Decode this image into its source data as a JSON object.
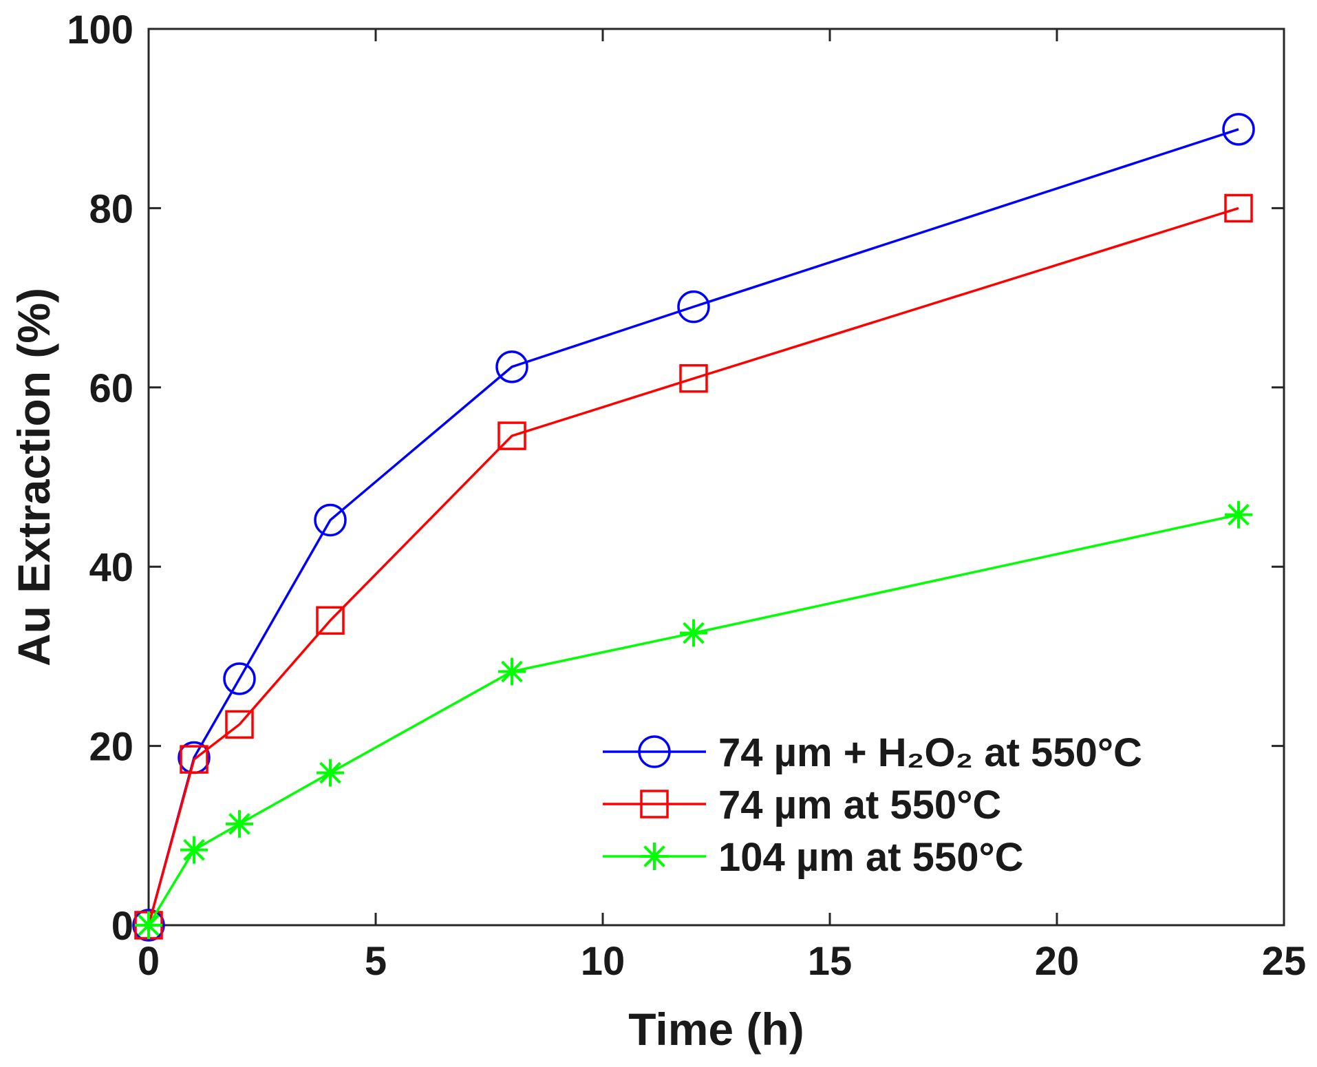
{
  "chart_data": {
    "type": "line",
    "title": "",
    "xlabel": "Time (h)",
    "ylabel": "Au Extraction (%)",
    "xlim": [
      0,
      25
    ],
    "ylim": [
      0,
      100
    ],
    "xticks": [
      0,
      5,
      10,
      15,
      20,
      25
    ],
    "yticks": [
      0,
      20,
      40,
      60,
      80,
      100
    ],
    "grid": false,
    "legend_position": "bottom-right",
    "series": [
      {
        "name": "74 µm + H₂O₂ at 550°C",
        "color": "#0000ff",
        "marker": "circle",
        "x": [
          0,
          1,
          2,
          4,
          8,
          12,
          24
        ],
        "y": [
          0,
          18.7,
          27.5,
          45.2,
          62.3,
          69.0,
          88.8
        ]
      },
      {
        "name": "74 µm at 550°C",
        "color": "#ff0000",
        "marker": "square",
        "x": [
          0,
          1,
          2,
          4,
          8,
          12,
          24
        ],
        "y": [
          0,
          18.5,
          22.4,
          34.0,
          54.6,
          61.0,
          80.0
        ]
      },
      {
        "name": "104 µm at 550°C",
        "color": "#00ff00",
        "marker": "star",
        "x": [
          0,
          1,
          2,
          4,
          8,
          12,
          24
        ],
        "y": [
          0,
          8.4,
          11.3,
          17.0,
          28.3,
          32.6,
          45.8
        ]
      }
    ]
  }
}
